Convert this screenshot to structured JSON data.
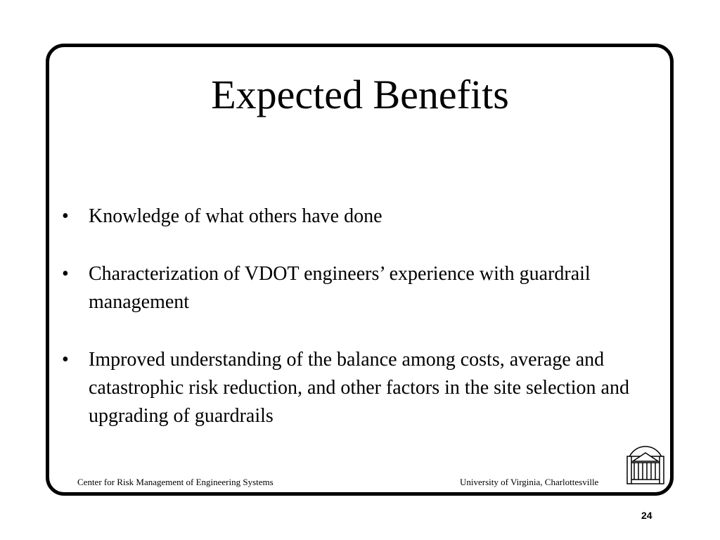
{
  "title": "Expected Benefits",
  "bullets": [
    {
      "text": "Knowledge of what others have done"
    },
    {
      "text": "Characterization of VDOT engineers’ experience with guardrail management"
    },
    {
      "text": "Improved understanding of the balance among costs, average and catastrophic risk reduction, and other factors in the site selection and upgrading of guardrails"
    }
  ],
  "bullet_glyph": "•",
  "footer": {
    "left": "Center for Risk Management of Engineering Systems",
    "right": "University of Virginia, Charlottesville"
  },
  "page_number": "24",
  "logo_icon": "rotunda-logo"
}
